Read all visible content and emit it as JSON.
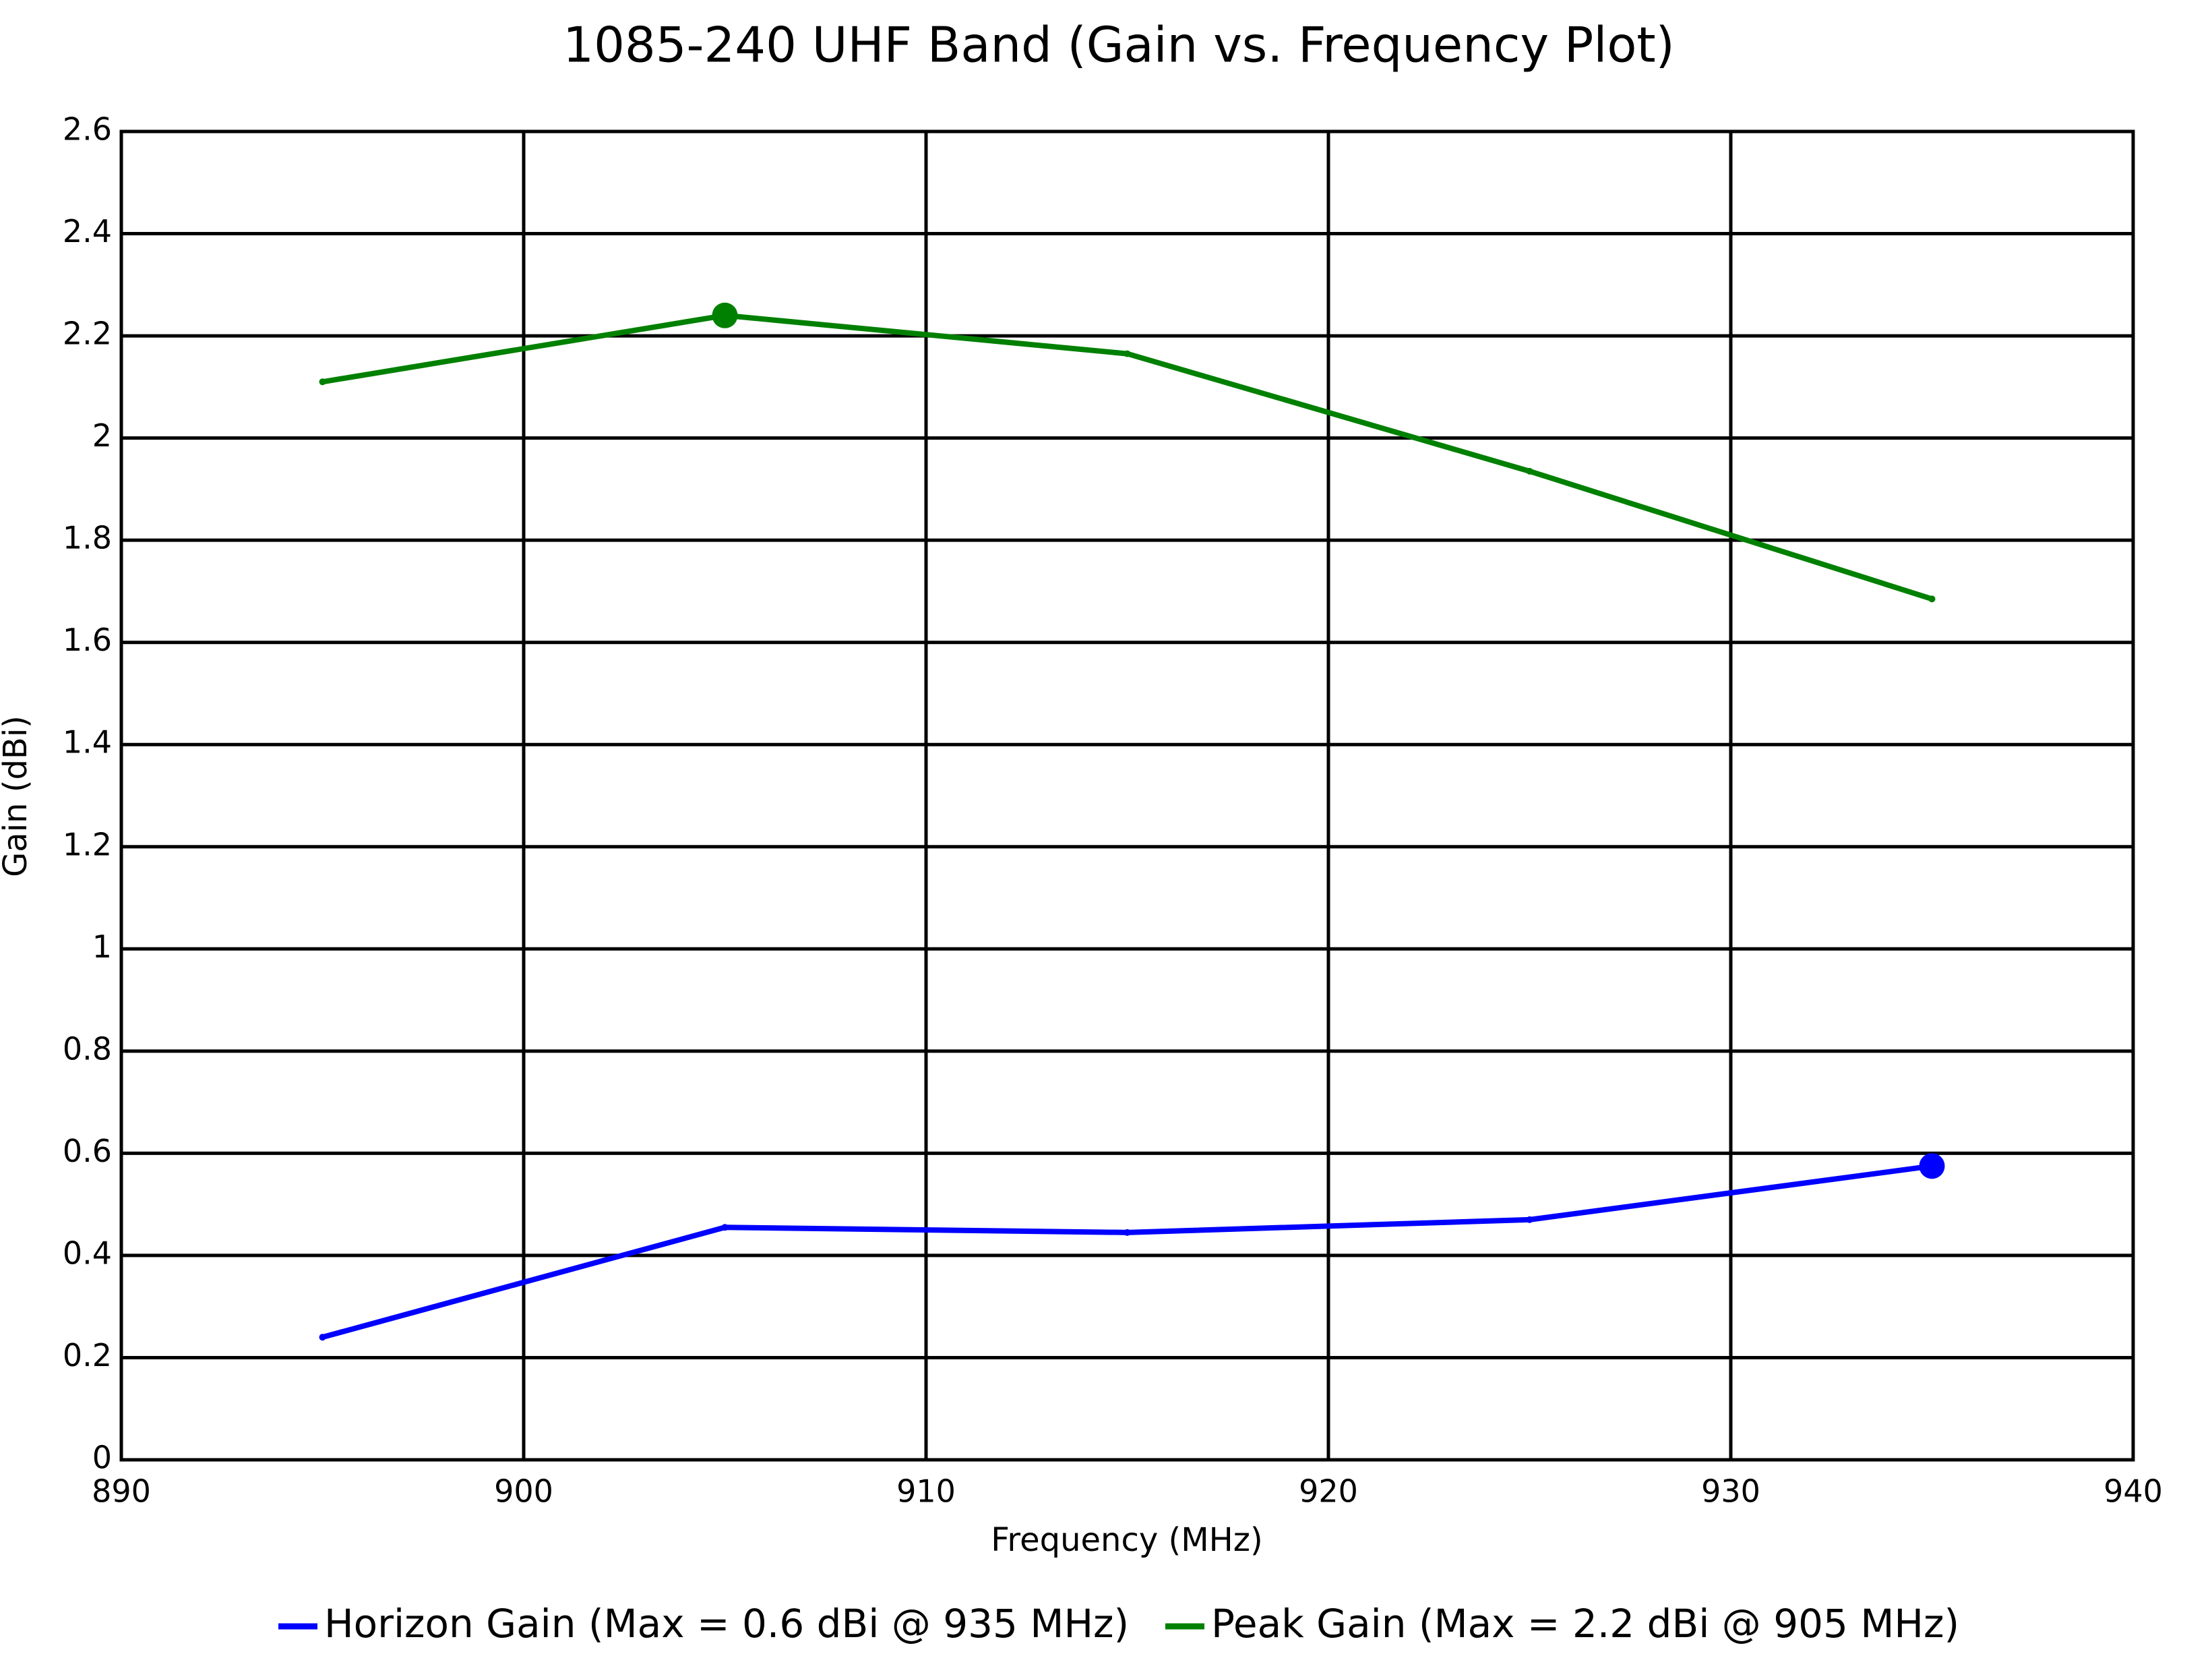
{
  "chart_data": {
    "type": "line",
    "title": "1085-240 UHF Band (Gain vs. Frequency Plot)",
    "x_label": "Frequency (MHz)",
    "y_label": "Gain (dBi)",
    "x": [
      895,
      905,
      915,
      925,
      935
    ],
    "series": [
      {
        "name": "Horizon Gain (Max = 0.6 dBi @ 935 MHz)",
        "color": "#0000ff",
        "values": [
          0.24,
          0.455,
          0.445,
          0.47,
          0.575
        ]
      },
      {
        "name": "Peak Gain (Max = 2.2 dBi @ 905 MHz)",
        "color": "#008000",
        "values": [
          2.11,
          2.24,
          2.165,
          1.935,
          1.685
        ]
      }
    ],
    "xlim": [
      890,
      940
    ],
    "xticks": [
      890,
      900,
      910,
      920,
      930,
      940
    ],
    "ylim": [
      0,
      2.6
    ],
    "yticks": [
      0,
      0.2,
      0.4,
      0.6,
      0.8,
      1,
      1.2,
      1.4,
      1.6,
      1.8,
      2,
      2.2,
      2.4,
      2.6
    ],
    "grid": true,
    "legend": "bottom"
  }
}
